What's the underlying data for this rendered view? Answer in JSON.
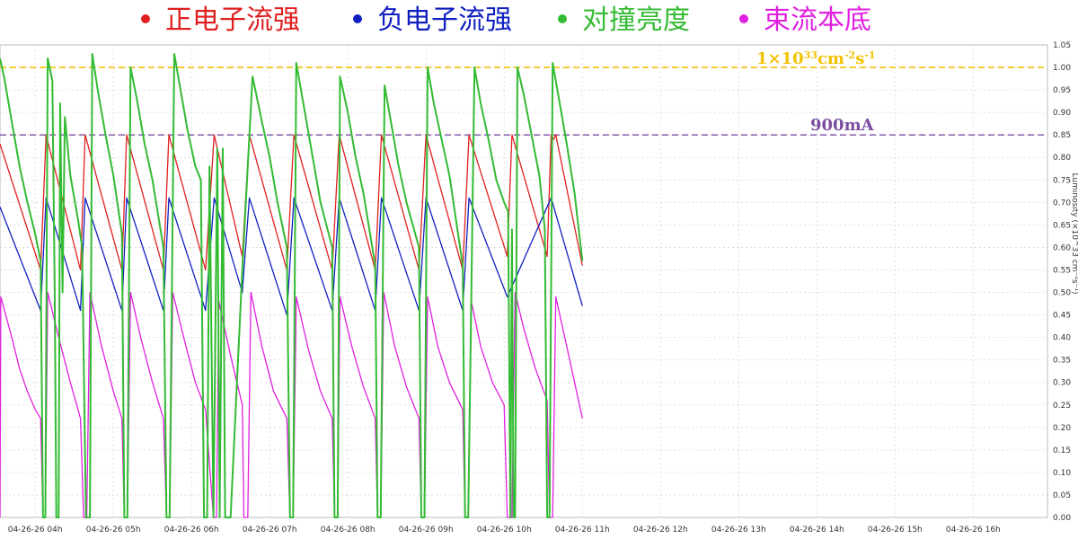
{
  "chart_data": {
    "type": "line",
    "title": "",
    "xlabel": "",
    "ylabel": "Luminosity (×10^33 cm⁻²s⁻¹)",
    "ylim": [
      0,
      1.05
    ],
    "yticks": [
      "0.00",
      "0.05",
      "0.10",
      "0.15",
      "0.20",
      "0.25",
      "0.30",
      "0.35",
      "0.40",
      "0.45",
      "0.50",
      "0.55",
      "0.60",
      "0.65",
      "0.70",
      "0.75",
      "0.80",
      "0.85",
      "0.90",
      "0.95",
      "1.00",
      "1.05"
    ],
    "xlim": [
      3.55,
      16.95
    ],
    "xticks": [
      {
        "x": 4,
        "label": "04-26-26 04h"
      },
      {
        "x": 5,
        "label": "04-26-26 05h"
      },
      {
        "x": 6,
        "label": "04-26-26 06h"
      },
      {
        "x": 7,
        "label": "04-26-26 07h"
      },
      {
        "x": 8,
        "label": "04-26-26 08h"
      },
      {
        "x": 9,
        "label": "04-26-26 09h"
      },
      {
        "x": 10,
        "label": "04-26-26 10h"
      },
      {
        "x": 11,
        "label": "04-26-26 11h"
      },
      {
        "x": 12,
        "label": "04-26-26 12h"
      },
      {
        "x": 13,
        "label": "04-26-26 13h"
      },
      {
        "x": 14,
        "label": "04-26-26 14h"
      },
      {
        "x": 15,
        "label": "04-26-26 15h"
      },
      {
        "x": 16,
        "label": "04-26-26 16h"
      }
    ],
    "grid": true,
    "legend_position": "top",
    "reference_lines": [
      {
        "value": 1.0,
        "label": "1×10",
        "sup1": "33",
        "mid": "cm",
        "sup2": "-2",
        "mid2": "s",
        "sup3": "-1",
        "color": "#f2c200"
      },
      {
        "value": 0.85,
        "label": "900mA",
        "color": "#7b4fa0"
      }
    ],
    "series": [
      {
        "name": "正电子流强",
        "color": "#e02020",
        "points": [
          [
            3.55,
            0.83
          ],
          [
            4.07,
            0.55
          ],
          [
            4.07,
            0.55
          ],
          [
            4.14,
            0.85
          ],
          [
            4.58,
            0.55
          ],
          [
            4.58,
            0.55
          ],
          [
            4.64,
            0.85
          ],
          [
            5.11,
            0.55
          ],
          [
            5.11,
            0.55
          ],
          [
            5.17,
            0.85
          ],
          [
            5.64,
            0.55
          ],
          [
            5.64,
            0.55
          ],
          [
            5.71,
            0.85
          ],
          [
            6.18,
            0.55
          ],
          [
            6.18,
            0.55
          ],
          [
            6.29,
            0.85
          ],
          [
            6.65,
            0.58
          ],
          [
            6.65,
            0.58
          ],
          [
            6.74,
            0.85
          ],
          [
            7.22,
            0.55
          ],
          [
            7.22,
            0.55
          ],
          [
            7.31,
            0.85
          ],
          [
            7.8,
            0.55
          ],
          [
            7.8,
            0.55
          ],
          [
            7.89,
            0.85
          ],
          [
            8.35,
            0.55
          ],
          [
            8.35,
            0.55
          ],
          [
            8.43,
            0.85
          ],
          [
            8.91,
            0.55
          ],
          [
            8.91,
            0.55
          ],
          [
            9.0,
            0.85
          ],
          [
            9.47,
            0.55
          ],
          [
            9.47,
            0.55
          ],
          [
            9.55,
            0.85
          ],
          [
            10.04,
            0.58
          ],
          [
            10.04,
            0.58
          ],
          [
            10.1,
            0.85
          ],
          [
            10.55,
            0.58
          ],
          [
            10.55,
            0.58
          ],
          [
            10.6,
            0.85
          ],
          [
            10.63,
            0.84
          ],
          [
            10.66,
            0.85
          ],
          [
            11.0,
            0.56
          ]
        ]
      },
      {
        "name": "负电子流强",
        "color": "#1020c0",
        "points": [
          [
            3.55,
            0.69
          ],
          [
            4.07,
            0.46
          ],
          [
            4.07,
            0.46
          ],
          [
            4.14,
            0.71
          ],
          [
            4.58,
            0.46
          ],
          [
            4.58,
            0.46
          ],
          [
            4.64,
            0.71
          ],
          [
            5.11,
            0.46
          ],
          [
            5.11,
            0.46
          ],
          [
            5.17,
            0.71
          ],
          [
            5.64,
            0.46
          ],
          [
            5.64,
            0.46
          ],
          [
            5.71,
            0.71
          ],
          [
            6.18,
            0.46
          ],
          [
            6.18,
            0.46
          ],
          [
            6.29,
            0.71
          ],
          [
            6.65,
            0.5
          ],
          [
            6.65,
            0.5
          ],
          [
            6.74,
            0.71
          ],
          [
            7.22,
            0.45
          ],
          [
            7.22,
            0.45
          ],
          [
            7.31,
            0.71
          ],
          [
            7.8,
            0.46
          ],
          [
            7.8,
            0.46
          ],
          [
            7.89,
            0.71
          ],
          [
            8.35,
            0.46
          ],
          [
            8.35,
            0.46
          ],
          [
            8.43,
            0.71
          ],
          [
            8.91,
            0.46
          ],
          [
            8.91,
            0.46
          ],
          [
            9.0,
            0.71
          ],
          [
            9.47,
            0.46
          ],
          [
            9.47,
            0.46
          ],
          [
            9.55,
            0.71
          ],
          [
            10.04,
            0.49
          ],
          [
            10.04,
            0.49
          ],
          [
            10.6,
            0.71
          ],
          [
            11.0,
            0.47
          ]
        ]
      },
      {
        "name": "对撞亮度",
        "color": "#33bb33",
        "points": [
          [
            3.55,
            1.02
          ],
          [
            3.6,
            0.98
          ],
          [
            3.7,
            0.88
          ],
          [
            3.8,
            0.78
          ],
          [
            3.9,
            0.7
          ],
          [
            4.0,
            0.63
          ],
          [
            4.07,
            0.57
          ],
          [
            4.1,
            0.0
          ],
          [
            4.13,
            0.0
          ],
          [
            4.16,
            1.02
          ],
          [
            4.22,
            0.97
          ],
          [
            4.25,
            0.5
          ],
          [
            4.27,
            0.0
          ],
          [
            4.3,
            0.0
          ],
          [
            4.32,
            0.92
          ],
          [
            4.35,
            0.5
          ],
          [
            4.38,
            0.89
          ],
          [
            4.45,
            0.76
          ],
          [
            4.55,
            0.66
          ],
          [
            4.6,
            0.6
          ],
          [
            4.65,
            0.0
          ],
          [
            4.7,
            0.0
          ],
          [
            4.73,
            1.03
          ],
          [
            4.8,
            0.95
          ],
          [
            4.9,
            0.85
          ],
          [
            5.0,
            0.76
          ],
          [
            5.11,
            0.63
          ],
          [
            5.14,
            0.0
          ],
          [
            5.18,
            0.0
          ],
          [
            5.22,
            1.0
          ],
          [
            5.3,
            0.93
          ],
          [
            5.4,
            0.83
          ],
          [
            5.5,
            0.75
          ],
          [
            5.64,
            0.6
          ],
          [
            5.68,
            0.0
          ],
          [
            5.72,
            0.0
          ],
          [
            5.78,
            1.03
          ],
          [
            5.85,
            0.96
          ],
          [
            5.95,
            0.86
          ],
          [
            6.05,
            0.78
          ],
          [
            6.12,
            0.75
          ],
          [
            6.16,
            0.0
          ],
          [
            6.2,
            0.0
          ],
          [
            6.23,
            0.78
          ],
          [
            6.28,
            0.0
          ],
          [
            6.33,
            0.82
          ],
          [
            6.36,
            0.0
          ],
          [
            6.4,
            0.82
          ],
          [
            6.43,
            0.0
          ],
          [
            6.5,
            0.0
          ],
          [
            6.65,
            0.55
          ],
          [
            6.78,
            0.98
          ],
          [
            6.9,
            0.88
          ],
          [
            7.0,
            0.8
          ],
          [
            7.1,
            0.7
          ],
          [
            7.22,
            0.6
          ],
          [
            7.26,
            0.0
          ],
          [
            7.3,
            0.0
          ],
          [
            7.34,
            1.01
          ],
          [
            7.45,
            0.9
          ],
          [
            7.55,
            0.8
          ],
          [
            7.65,
            0.7
          ],
          [
            7.8,
            0.6
          ],
          [
            7.83,
            0.0
          ],
          [
            7.87,
            0.0
          ],
          [
            7.9,
            0.98
          ],
          [
            8.0,
            0.9
          ],
          [
            8.1,
            0.8
          ],
          [
            8.2,
            0.72
          ],
          [
            8.35,
            0.56
          ],
          [
            8.38,
            0.0
          ],
          [
            8.42,
            0.0
          ],
          [
            8.47,
            0.96
          ],
          [
            8.55,
            0.88
          ],
          [
            8.65,
            0.78
          ],
          [
            8.75,
            0.7
          ],
          [
            8.91,
            0.6
          ],
          [
            8.94,
            0.0
          ],
          [
            8.98,
            0.0
          ],
          [
            9.02,
            1.0
          ],
          [
            9.1,
            0.92
          ],
          [
            9.2,
            0.84
          ],
          [
            9.3,
            0.76
          ],
          [
            9.47,
            0.56
          ],
          [
            9.5,
            0.0
          ],
          [
            9.54,
            0.0
          ],
          [
            9.62,
            1.0
          ],
          [
            9.7,
            0.92
          ],
          [
            9.8,
            0.84
          ],
          [
            9.9,
            0.75
          ],
          [
            10.0,
            0.7
          ],
          [
            10.05,
            0.68
          ],
          [
            10.08,
            0.0
          ],
          [
            10.1,
            0.64
          ],
          [
            10.12,
            0.0
          ],
          [
            10.14,
            0.0
          ],
          [
            10.17,
            1.0
          ],
          [
            10.25,
            0.94
          ],
          [
            10.35,
            0.85
          ],
          [
            10.45,
            0.76
          ],
          [
            10.52,
            0.64
          ],
          [
            10.55,
            0.0
          ],
          [
            10.58,
            0.0
          ],
          [
            10.62,
            1.01
          ],
          [
            10.7,
            0.93
          ],
          [
            10.8,
            0.83
          ],
          [
            10.9,
            0.72
          ],
          [
            11.0,
            0.57
          ]
        ]
      },
      {
        "name": "束流本底",
        "color": "#e020e0",
        "points": [
          [
            3.55,
            0.0
          ],
          [
            3.56,
            0.49
          ],
          [
            3.7,
            0.4
          ],
          [
            3.8,
            0.33
          ],
          [
            3.9,
            0.28
          ],
          [
            4.0,
            0.24
          ],
          [
            4.07,
            0.22
          ],
          [
            4.1,
            0.0
          ],
          [
            4.13,
            0.0
          ],
          [
            4.16,
            0.5
          ],
          [
            4.3,
            0.4
          ],
          [
            4.45,
            0.3
          ],
          [
            4.58,
            0.22
          ],
          [
            4.62,
            0.0
          ],
          [
            4.66,
            0.0
          ],
          [
            4.7,
            0.5
          ],
          [
            4.85,
            0.38
          ],
          [
            5.0,
            0.28
          ],
          [
            5.11,
            0.22
          ],
          [
            5.14,
            0.0
          ],
          [
            5.18,
            0.0
          ],
          [
            5.22,
            0.5
          ],
          [
            5.35,
            0.4
          ],
          [
            5.5,
            0.3
          ],
          [
            5.64,
            0.22
          ],
          [
            5.68,
            0.0
          ],
          [
            5.72,
            0.0
          ],
          [
            5.76,
            0.5
          ],
          [
            5.9,
            0.4
          ],
          [
            6.05,
            0.3
          ],
          [
            6.18,
            0.24
          ],
          [
            6.28,
            0.0
          ],
          [
            6.32,
            0.0
          ],
          [
            6.35,
            0.48
          ],
          [
            6.5,
            0.36
          ],
          [
            6.65,
            0.25
          ],
          [
            6.67,
            0.0
          ],
          [
            6.72,
            0.0
          ],
          [
            6.76,
            0.5
          ],
          [
            6.9,
            0.38
          ],
          [
            7.05,
            0.28
          ],
          [
            7.22,
            0.22
          ],
          [
            7.26,
            0.0
          ],
          [
            7.3,
            0.0
          ],
          [
            7.34,
            0.49
          ],
          [
            7.5,
            0.37
          ],
          [
            7.65,
            0.28
          ],
          [
            7.8,
            0.22
          ],
          [
            7.83,
            0.0
          ],
          [
            7.87,
            0.0
          ],
          [
            7.9,
            0.49
          ],
          [
            8.05,
            0.38
          ],
          [
            8.2,
            0.29
          ],
          [
            8.35,
            0.22
          ],
          [
            8.38,
            0.0
          ],
          [
            8.42,
            0.0
          ],
          [
            8.46,
            0.5
          ],
          [
            8.6,
            0.38
          ],
          [
            8.75,
            0.29
          ],
          [
            8.91,
            0.22
          ],
          [
            8.94,
            0.0
          ],
          [
            8.98,
            0.0
          ],
          [
            9.02,
            0.49
          ],
          [
            9.15,
            0.38
          ],
          [
            9.3,
            0.3
          ],
          [
            9.47,
            0.24
          ],
          [
            9.5,
            0.0
          ],
          [
            9.54,
            0.0
          ],
          [
            9.58,
            0.48
          ],
          [
            9.7,
            0.38
          ],
          [
            9.85,
            0.3
          ],
          [
            10.0,
            0.25
          ],
          [
            10.04,
            0.0
          ],
          [
            10.1,
            0.0
          ],
          [
            10.14,
            0.5
          ],
          [
            10.25,
            0.42
          ],
          [
            10.4,
            0.33
          ],
          [
            10.55,
            0.26
          ],
          [
            10.58,
            0.0
          ],
          [
            10.62,
            0.0
          ],
          [
            10.66,
            0.49
          ],
          [
            10.8,
            0.38
          ],
          [
            10.9,
            0.3
          ],
          [
            11.0,
            0.22
          ]
        ]
      }
    ]
  },
  "colors": {
    "grid": "#d8d8d8",
    "axis": "#555555"
  }
}
